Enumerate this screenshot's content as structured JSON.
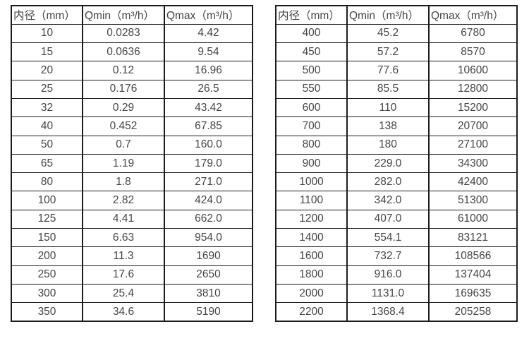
{
  "page": {
    "background_color": "#ffffff",
    "text_color": "#454545",
    "border_color": "#1c1c1c"
  },
  "tables": [
    {
      "name": "flow-spec-small-diameters",
      "headers": [
        "内径（mm）",
        "Qmin（m³/h）",
        "Qmax（m³/h）"
      ],
      "rows": [
        [
          "10",
          "0.0283",
          "4.42"
        ],
        [
          "15",
          "0.0636",
          "9.54"
        ],
        [
          "20",
          "0.12",
          "16.96"
        ],
        [
          "25",
          "0.176",
          "26.5"
        ],
        [
          "32",
          "0.29",
          "43.42"
        ],
        [
          "40",
          "0.452",
          "67.85"
        ],
        [
          "50",
          "0.7",
          "160.0"
        ],
        [
          "65",
          "1.19",
          "179.0"
        ],
        [
          "80",
          "1.8",
          "271.0"
        ],
        [
          "100",
          "2.82",
          "424.0"
        ],
        [
          "125",
          "4.41",
          "662.0"
        ],
        [
          "150",
          "6.63",
          "954.0"
        ],
        [
          "200",
          "11.3",
          "1690"
        ],
        [
          "250",
          "17.6",
          "2650"
        ],
        [
          "300",
          "25.4",
          "3810"
        ],
        [
          "350",
          "34.6",
          "5190"
        ]
      ]
    },
    {
      "name": "flow-spec-large-diameters",
      "headers": [
        "内径（mm）",
        "Qmin（m³/h）",
        "Qmax（m³/h）"
      ],
      "rows": [
        [
          "400",
          "45.2",
          "6780"
        ],
        [
          "450",
          "57.2",
          "8570"
        ],
        [
          "500",
          "77.6",
          "10600"
        ],
        [
          "550",
          "85.5",
          "12800"
        ],
        [
          "600",
          "110",
          "15200"
        ],
        [
          "700",
          "138",
          "20700"
        ],
        [
          "800",
          "180",
          "27100"
        ],
        [
          "900",
          "229.0",
          "34300"
        ],
        [
          "1000",
          "282.0",
          "42400"
        ],
        [
          "1100",
          "342.0",
          "51300"
        ],
        [
          "1200",
          "407.0",
          "61000"
        ],
        [
          "1400",
          "554.1",
          "83121"
        ],
        [
          "1600",
          "732.7",
          "108566"
        ],
        [
          "1800",
          "916.0",
          "137404"
        ],
        [
          "2000",
          "1131.0",
          "169635"
        ],
        [
          "2200",
          "1368.4",
          "205258"
        ]
      ]
    }
  ]
}
